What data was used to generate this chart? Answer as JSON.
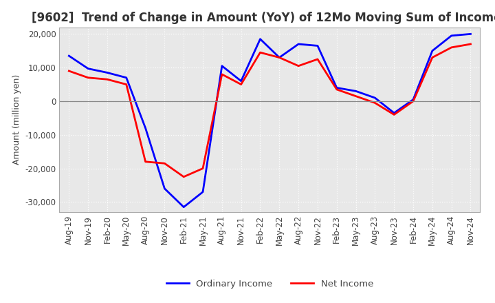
{
  "title": "[9602]  Trend of Change in Amount (YoY) of 12Mo Moving Sum of Incomes",
  "ylabel": "Amount (million yen)",
  "xlabels": [
    "Aug-19",
    "Nov-19",
    "Feb-20",
    "May-20",
    "Aug-20",
    "Nov-20",
    "Feb-21",
    "May-21",
    "Aug-21",
    "Nov-21",
    "Feb-22",
    "May-22",
    "Aug-22",
    "Nov-22",
    "Feb-23",
    "May-23",
    "Aug-23",
    "Nov-23",
    "Feb-24",
    "May-24",
    "Aug-24",
    "Nov-24"
  ],
  "ordinary_income": [
    13500,
    9700,
    8500,
    7000,
    -8000,
    -26000,
    -31500,
    -27000,
    10500,
    6000,
    18500,
    13000,
    17000,
    16500,
    4000,
    3000,
    1000,
    -3500,
    500,
    15000,
    19500,
    20000
  ],
  "net_income": [
    9000,
    7000,
    6500,
    5000,
    -18000,
    -18500,
    -22500,
    -20000,
    8000,
    5000,
    14500,
    13000,
    10500,
    12500,
    3500,
    1500,
    -500,
    -4000,
    0,
    13000,
    16000,
    17000
  ],
  "ordinary_income_color": "#0000FF",
  "net_income_color": "#FF0000",
  "ylim": [
    -33000,
    22000
  ],
  "yticks": [
    -30000,
    -20000,
    -10000,
    0,
    10000,
    20000
  ],
  "plot_bg_color": "#E8E8E8",
  "fig_bg_color": "#FFFFFF",
  "grid_color": "#FFFFFF",
  "legend_ordinary": "Ordinary Income",
  "legend_net": "Net Income",
  "line_width": 2.0,
  "title_fontsize": 12,
  "axis_fontsize": 8.5,
  "ylabel_fontsize": 9
}
